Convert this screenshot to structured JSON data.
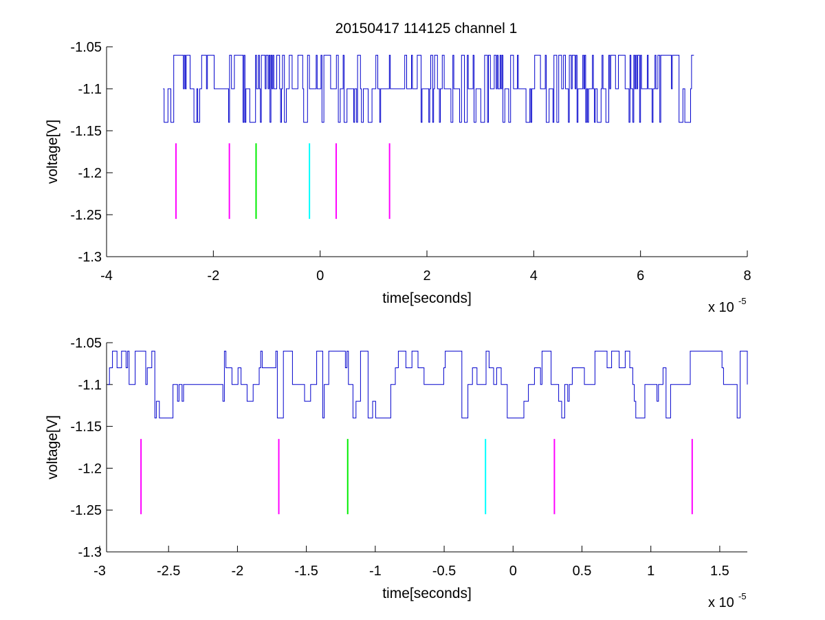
{
  "chart_data": [
    {
      "type": "line",
      "title": "20150417 114125 channel 1",
      "xlabel": "time[seconds]",
      "ylabel": "voltage[V]",
      "x_multiplier_label": "x 10",
      "x_multiplier_exponent": "-5",
      "xlim": [
        -4,
        8
      ],
      "ylim": [
        -1.3,
        -1.05
      ],
      "xticks": [
        -4,
        -2,
        0,
        2,
        4,
        6,
        8
      ],
      "xtick_labels": [
        "-4",
        "-2",
        "0",
        "2",
        "4",
        "6",
        "8"
      ],
      "yticks": [
        -1.05,
        -1.1,
        -1.15,
        -1.2,
        -1.25,
        -1.3
      ],
      "ytick_labels": [
        "-1.05",
        "-1.1",
        "-1.15",
        "-1.2",
        "-1.25",
        "-1.3"
      ],
      "grid": false,
      "signal": {
        "color": "#0000cc",
        "x_range": [
          -2.94,
          7.0
        ],
        "levels": [
          -1.06,
          -1.1,
          -1.14
        ],
        "baseline": -1.1
      },
      "markers": [
        {
          "x": -2.7,
          "y_range": [
            -1.255,
            -1.165
          ],
          "color": "#ff00ff"
        },
        {
          "x": -1.7,
          "y_range": [
            -1.255,
            -1.165
          ],
          "color": "#ff00ff"
        },
        {
          "x": -1.2,
          "y_range": [
            -1.255,
            -1.165
          ],
          "color": "#00ee00"
        },
        {
          "x": -0.2,
          "y_range": [
            -1.255,
            -1.165
          ],
          "color": "#00ffff"
        },
        {
          "x": 0.3,
          "y_range": [
            -1.255,
            -1.165
          ],
          "color": "#ff00ff"
        },
        {
          "x": 1.3,
          "y_range": [
            -1.255,
            -1.165
          ],
          "color": "#ff00ff"
        }
      ]
    },
    {
      "type": "line",
      "title": "",
      "xlabel": "time[seconds]",
      "ylabel": "voltage[V]",
      "x_multiplier_label": "x 10",
      "x_multiplier_exponent": "-5",
      "xlim": [
        -2.95,
        1.7
      ],
      "ylim": [
        -1.3,
        -1.05
      ],
      "xticks": [
        -3,
        -2.5,
        -2,
        -1.5,
        -1,
        -0.5,
        0,
        0.5,
        1,
        1.5
      ],
      "xtick_labels": [
        "-3",
        "-2.5",
        "-2",
        "-1.5",
        "-1",
        "-0.5",
        "0",
        "0.5",
        "1",
        "1.5"
      ],
      "yticks": [
        -1.05,
        -1.1,
        -1.15,
        -1.2,
        -1.25,
        -1.3
      ],
      "ytick_labels": [
        "-1.05",
        "-1.1",
        "-1.15",
        "-1.2",
        "-1.25",
        "-1.3"
      ],
      "grid": false,
      "signal": {
        "color": "#0000cc",
        "x_range": [
          -2.94,
          1.7
        ],
        "levels": [
          -1.06,
          -1.08,
          -1.1,
          -1.12,
          -1.14
        ],
        "baseline": -1.1
      },
      "markers": [
        {
          "x": -2.7,
          "y_range": [
            -1.255,
            -1.165
          ],
          "color": "#ff00ff"
        },
        {
          "x": -1.7,
          "y_range": [
            -1.255,
            -1.165
          ],
          "color": "#ff00ff"
        },
        {
          "x": -1.2,
          "y_range": [
            -1.255,
            -1.165
          ],
          "color": "#00ee00"
        },
        {
          "x": -0.2,
          "y_range": [
            -1.255,
            -1.165
          ],
          "color": "#00ffff"
        },
        {
          "x": 0.3,
          "y_range": [
            -1.255,
            -1.165
          ],
          "color": "#ff00ff"
        },
        {
          "x": 1.3,
          "y_range": [
            -1.255,
            -1.165
          ],
          "color": "#ff00ff"
        }
      ]
    }
  ]
}
